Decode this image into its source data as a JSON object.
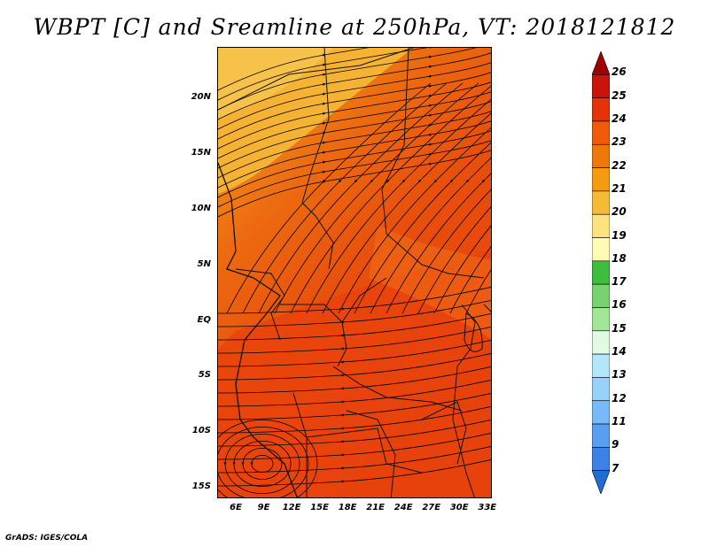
{
  "title": "WBPT [C] and Sreamline at 250hPa, VT: 2018121812",
  "footer": "GrADS: IGES/COLA",
  "map": {
    "lat_labels": [
      "20N",
      "15N",
      "10N",
      "5N",
      "EQ",
      "5S",
      "10S",
      "15S"
    ],
    "lat_values": [
      20,
      15,
      10,
      5,
      0,
      -5,
      -10,
      -15
    ],
    "lon_labels": [
      "6E",
      "9E",
      "12E",
      "15E",
      "18E",
      "21E",
      "24E",
      "27E",
      "30E",
      "33E"
    ],
    "lon_values": [
      6,
      9,
      12,
      15,
      18,
      21,
      24,
      27,
      30,
      33
    ],
    "lon_range": [
      4,
      33.5
    ],
    "lat_range": [
      -16,
      24.5
    ],
    "dominant_fields": {
      "northwest": "20-21 C",
      "central": "22-23 C",
      "south": "23-24 C"
    }
  },
  "colorbar": {
    "labels": [
      "26",
      "25",
      "24",
      "23",
      "22",
      "21",
      "20",
      "19",
      "18",
      "17",
      "16",
      "15",
      "14",
      "13",
      "12",
      "11",
      "9",
      "7"
    ],
    "colors": [
      "#a00000",
      "#c8140a",
      "#e6320a",
      "#f05a0a",
      "#f0780a",
      "#f59b0f",
      "#f5bb37",
      "#ffe27d",
      "#fffab4",
      "#3cbe3c",
      "#78d26e",
      "#a0e696",
      "#e1fae1",
      "#b4e6fa",
      "#96d2fa",
      "#78b9fa",
      "#5a9ef0",
      "#3c82e6",
      "#1e6ed2"
    ]
  }
}
